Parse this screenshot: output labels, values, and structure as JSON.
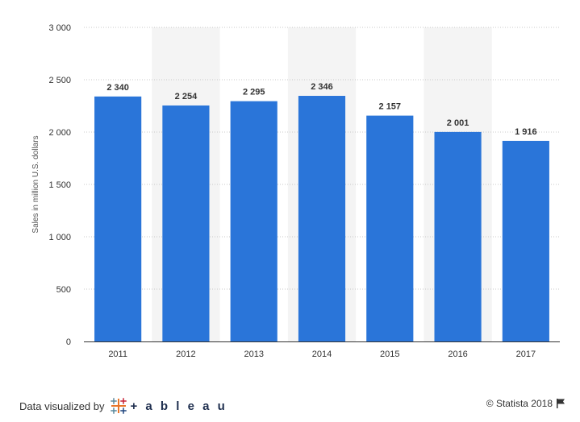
{
  "chart_data": {
    "type": "bar",
    "categories": [
      "2011",
      "2012",
      "2013",
      "2014",
      "2015",
      "2016",
      "2017"
    ],
    "values": [
      2340,
      2254,
      2295,
      2346,
      2157,
      2001,
      1916
    ],
    "value_labels": [
      "2 340",
      "2 254",
      "2 295",
      "2 346",
      "2 157",
      "2 001",
      "1 916"
    ],
    "ylabel": "Sales in million U.S. dollars",
    "ylim": [
      0,
      3000
    ],
    "yticks": [
      0,
      500,
      1000,
      1500,
      2000,
      2500,
      3000
    ],
    "ytick_labels": [
      "0",
      "500",
      "1 000",
      "1 500",
      "2 000",
      "2 500",
      "3 000"
    ],
    "grid": true,
    "bar_color": "#2a75d9",
    "band_color": "#f4f4f4"
  },
  "footer": {
    "left_text": "Data visualized by",
    "brand_word": "+ a b l e a u",
    "brand_icon": "tableau-logo-icon",
    "right_text": "© Statista 2018",
    "right_icon": "flag-icon"
  }
}
